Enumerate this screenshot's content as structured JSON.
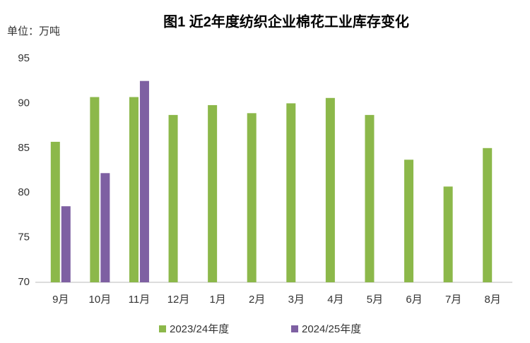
{
  "chart_data": {
    "type": "bar",
    "title": "图1 近2年度纺织企业棉花工业库存变化",
    "y_unit_label": "单位：万吨",
    "categories": [
      "9月",
      "10月",
      "11月",
      "12月",
      "1月",
      "2月",
      "3月",
      "4月",
      "5月",
      "6月",
      "7月",
      "8月"
    ],
    "series": [
      {
        "name": "2023/24年度",
        "color": "#8cb84a",
        "values": [
          85.7,
          90.7,
          90.7,
          88.7,
          89.8,
          88.9,
          90.0,
          90.6,
          88.7,
          83.7,
          80.7,
          85.0
        ]
      },
      {
        "name": "2024/25年度",
        "color": "#7e60a2",
        "values": [
          78.5,
          82.2,
          92.5,
          null,
          null,
          null,
          null,
          null,
          null,
          null,
          null,
          null
        ]
      }
    ],
    "ylim": [
      70,
      95
    ],
    "yticks": [
      70,
      75,
      80,
      85,
      90,
      95
    ],
    "grid": false,
    "legend": "bottom"
  }
}
